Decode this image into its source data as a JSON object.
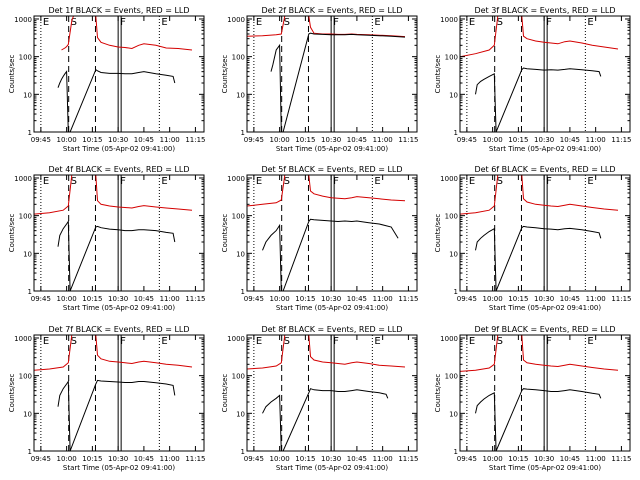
{
  "window": {
    "background": "#ffffff"
  },
  "colors": {
    "events": "#000000",
    "lld": "#d40000",
    "axis": "#000000"
  },
  "shared": {
    "ylabel": "Counts/sec",
    "xlabel": "Start Time (05-Apr-02 09:41:00)",
    "x_ticks": [
      "09:45",
      "10:00",
      "10:15",
      "10:30",
      "10:45",
      "11:00",
      "11:15"
    ],
    "y_ticks": [
      "1",
      "10",
      "100",
      "1000"
    ],
    "markers": [
      {
        "label": "E",
        "x": 9.75,
        "style": "dotted"
      },
      {
        "label": "S",
        "x": 10.02,
        "style": "dashed"
      },
      {
        "label": "",
        "x": 10.28,
        "style": "dashed"
      },
      {
        "label": "F",
        "x": 10.5,
        "style": "solid-double"
      },
      {
        "label": "E",
        "x": 10.9,
        "style": "dotted"
      }
    ]
  },
  "chart_data": [
    {
      "type": "line",
      "title": "Det 1f BLACK = Events, RED = LLD",
      "xlim": [
        "09:41",
        "11:20"
      ],
      "ylim": [
        1,
        1200
      ],
      "yscale": "log",
      "series": [
        {
          "name": "RED = LLD",
          "x": [
            "09:57",
            "09:58",
            "09:59",
            "10:00",
            "10:01",
            "10:03",
            "10:04",
            "10:05",
            "10:17",
            "10:18",
            "10:20",
            "10:25",
            "10:30",
            "10:34",
            "10:38",
            "10:42",
            "10:45",
            "10:52",
            "10:58",
            "11:05",
            "11:13"
          ],
          "values": [
            150,
            160,
            170,
            185,
            210,
            900,
            1200,
            1200,
            1200,
            320,
            240,
            200,
            180,
            175,
            165,
            200,
            220,
            200,
            170,
            165,
            150
          ]
        },
        {
          "name": "BLACK = Events",
          "x": [
            "09:55",
            "09:56",
            "09:57",
            "09:58",
            "09:59",
            "10:00",
            "10:01",
            "10:02",
            "10:17",
            "10:18",
            "10:20",
            "10:25",
            "10:30",
            "10:34",
            "10:38",
            "10:42",
            "10:45",
            "10:52",
            "10:58",
            "11:02",
            "11:03"
          ],
          "values": [
            15,
            20,
            25,
            30,
            35,
            40,
            1,
            1,
            45,
            42,
            38,
            36,
            36,
            35,
            35,
            38,
            40,
            35,
            32,
            30,
            20
          ]
        }
      ]
    },
    {
      "type": "line",
      "title": "Det 2f BLACK = Events, RED = LLD",
      "xlim": [
        "09:41",
        "11:20"
      ],
      "ylim": [
        1,
        1200
      ],
      "yscale": "log",
      "series": [
        {
          "name": "RED = LLD",
          "x": [
            "09:41",
            "09:50",
            "09:58",
            "10:01",
            "10:03",
            "10:04",
            "10:05",
            "10:17",
            "10:18",
            "10:20",
            "10:25",
            "10:30",
            "10:34",
            "10:38",
            "10:42",
            "10:45",
            "10:52",
            "10:58",
            "11:05",
            "11:13"
          ],
          "values": [
            350,
            360,
            380,
            400,
            1200,
            1200,
            1200,
            1200,
            600,
            420,
            400,
            400,
            390,
            390,
            400,
            390,
            380,
            370,
            360,
            340
          ]
        },
        {
          "name": "BLACK = Events",
          "x": [
            "09:55",
            "09:56",
            "09:58",
            "10:00",
            "10:01",
            "10:02",
            "10:17",
            "10:18",
            "10:20",
            "10:25",
            "10:30",
            "10:34",
            "10:38",
            "10:42",
            "10:45",
            "10:52",
            "10:58",
            "11:05",
            "11:13"
          ],
          "values": [
            40,
            60,
            150,
            200,
            1,
            1,
            400,
            420,
            400,
            390,
            380,
            380,
            380,
            390,
            380,
            370,
            360,
            350,
            330
          ]
        }
      ]
    },
    {
      "type": "line",
      "title": "Det 3f BLACK = Events, RED = LLD",
      "xlim": [
        "09:41",
        "11:20"
      ],
      "ylim": [
        1,
        1200
      ],
      "yscale": "log",
      "series": [
        {
          "name": "RED = LLD",
          "x": [
            "09:41",
            "09:50",
            "09:58",
            "10:01",
            "10:03",
            "10:04",
            "10:05",
            "10:17",
            "10:18",
            "10:20",
            "10:25",
            "10:30",
            "10:34",
            "10:38",
            "10:42",
            "10:45",
            "10:52",
            "10:58",
            "11:05",
            "11:13"
          ],
          "values": [
            100,
            120,
            150,
            200,
            1200,
            1200,
            1200,
            1200,
            350,
            300,
            260,
            240,
            230,
            220,
            250,
            260,
            230,
            200,
            180,
            160
          ]
        },
        {
          "name": "BLACK = Events",
          "x": [
            "09:50",
            "09:51",
            "09:53",
            "09:55",
            "09:58",
            "10:01",
            "10:02",
            "10:17",
            "10:18",
            "10:20",
            "10:25",
            "10:30",
            "10:34",
            "10:38",
            "10:42",
            "10:45",
            "10:52",
            "10:58",
            "11:02",
            "11:03"
          ],
          "values": [
            10,
            18,
            22,
            25,
            30,
            35,
            1,
            45,
            50,
            48,
            46,
            44,
            45,
            44,
            46,
            48,
            45,
            42,
            40,
            30
          ]
        }
      ]
    },
    {
      "type": "line",
      "title": "Det 4f BLACK = Events, RED = LLD",
      "xlim": [
        "09:41",
        "11:20"
      ],
      "ylim": [
        1,
        1200
      ],
      "yscale": "log",
      "series": [
        {
          "name": "RED = LLD",
          "x": [
            "09:41",
            "09:50",
            "09:58",
            "10:01",
            "10:03",
            "10:04",
            "10:05",
            "10:17",
            "10:18",
            "10:20",
            "10:25",
            "10:30",
            "10:34",
            "10:38",
            "10:42",
            "10:45",
            "10:52",
            "10:58",
            "11:05",
            "11:13"
          ],
          "values": [
            110,
            120,
            140,
            180,
            1200,
            1200,
            1200,
            1200,
            250,
            200,
            180,
            170,
            165,
            160,
            175,
            185,
            170,
            160,
            150,
            140
          ]
        },
        {
          "name": "BLACK = Events",
          "x": [
            "09:55",
            "09:56",
            "09:58",
            "10:00",
            "10:01",
            "10:02",
            "10:17",
            "10:18",
            "10:20",
            "10:25",
            "10:30",
            "10:34",
            "10:38",
            "10:42",
            "10:45",
            "10:52",
            "10:58",
            "11:02",
            "11:03"
          ],
          "values": [
            15,
            30,
            45,
            60,
            70,
            1,
            50,
            52,
            48,
            44,
            42,
            40,
            40,
            42,
            42,
            40,
            36,
            34,
            20
          ]
        }
      ]
    },
    {
      "type": "line",
      "title": "Det 5f BLACK = Events, RED = LLD",
      "xlim": [
        "09:41",
        "11:20"
      ],
      "ylim": [
        1,
        1200
      ],
      "yscale": "log",
      "series": [
        {
          "name": "RED = LLD",
          "x": [
            "09:41",
            "09:50",
            "09:58",
            "10:01",
            "10:03",
            "10:04",
            "10:05",
            "10:17",
            "10:18",
            "10:20",
            "10:25",
            "10:30",
            "10:34",
            "10:38",
            "10:42",
            "10:45",
            "10:52",
            "10:58",
            "11:05",
            "11:13"
          ],
          "values": [
            180,
            200,
            220,
            260,
            1200,
            1200,
            1200,
            1200,
            450,
            380,
            330,
            300,
            290,
            280,
            300,
            320,
            300,
            280,
            260,
            250
          ]
        },
        {
          "name": "BLACK = Events",
          "x": [
            "09:50",
            "09:52",
            "09:55",
            "09:58",
            "10:00",
            "10:01",
            "10:02",
            "10:17",
            "10:18",
            "10:20",
            "10:25",
            "10:30",
            "10:34",
            "10:38",
            "10:42",
            "10:45",
            "10:52",
            "10:58",
            "11:05",
            "11:09"
          ],
          "values": [
            12,
            20,
            30,
            40,
            55,
            1,
            1,
            70,
            80,
            78,
            75,
            72,
            70,
            72,
            70,
            72,
            65,
            60,
            50,
            25
          ]
        }
      ]
    },
    {
      "type": "line",
      "title": "Det 6f BLACK = Events, RED = LLD",
      "xlim": [
        "09:41",
        "11:20"
      ],
      "ylim": [
        1,
        1200
      ],
      "yscale": "log",
      "series": [
        {
          "name": "RED = LLD",
          "x": [
            "09:41",
            "09:50",
            "09:58",
            "10:01",
            "10:03",
            "10:04",
            "10:05",
            "10:17",
            "10:18",
            "10:20",
            "10:25",
            "10:30",
            "10:34",
            "10:38",
            "10:42",
            "10:45",
            "10:52",
            "10:58",
            "11:05",
            "11:13"
          ],
          "values": [
            110,
            120,
            140,
            180,
            1200,
            1200,
            1200,
            1200,
            280,
            230,
            200,
            190,
            180,
            175,
            190,
            200,
            180,
            165,
            150,
            140
          ]
        },
        {
          "name": "BLACK = Events",
          "x": [
            "09:50",
            "09:51",
            "09:53",
            "09:55",
            "09:58",
            "10:01",
            "10:02",
            "10:17",
            "10:18",
            "10:20",
            "10:25",
            "10:30",
            "10:34",
            "10:38",
            "10:42",
            "10:45",
            "10:52",
            "10:58",
            "11:02",
            "11:03"
          ],
          "values": [
            12,
            20,
            25,
            30,
            38,
            45,
            1,
            48,
            52,
            50,
            48,
            45,
            44,
            42,
            45,
            46,
            42,
            38,
            35,
            25
          ]
        }
      ]
    },
    {
      "type": "line",
      "title": "Det 7f BLACK = Events, RED = LLD",
      "xlim": [
        "09:41",
        "11:20"
      ],
      "ylim": [
        1,
        1200
      ],
      "yscale": "log",
      "series": [
        {
          "name": "RED = LLD",
          "x": [
            "09:41",
            "09:50",
            "09:58",
            "10:01",
            "10:03",
            "10:04",
            "10:05",
            "10:17",
            "10:18",
            "10:20",
            "10:25",
            "10:30",
            "10:34",
            "10:38",
            "10:42",
            "10:45",
            "10:52",
            "10:58",
            "11:05",
            "11:13"
          ],
          "values": [
            140,
            150,
            170,
            220,
            1200,
            1200,
            1200,
            1200,
            350,
            280,
            240,
            230,
            220,
            210,
            230,
            240,
            220,
            200,
            190,
            170
          ]
        },
        {
          "name": "BLACK = Events",
          "x": [
            "09:55",
            "09:56",
            "09:58",
            "10:00",
            "10:01",
            "10:02",
            "10:17",
            "10:18",
            "10:20",
            "10:25",
            "10:30",
            "10:34",
            "10:38",
            "10:42",
            "10:45",
            "10:52",
            "10:58",
            "11:02",
            "11:03"
          ],
          "values": [
            15,
            30,
            45,
            60,
            70,
            1,
            60,
            75,
            72,
            70,
            68,
            66,
            66,
            70,
            70,
            65,
            60,
            55,
            30
          ]
        }
      ]
    },
    {
      "type": "line",
      "title": "Det 8f BLACK = Events, RED = LLD",
      "xlim": [
        "09:41",
        "11:20"
      ],
      "ylim": [
        1,
        1200
      ],
      "yscale": "log",
      "series": [
        {
          "name": "RED = LLD",
          "x": [
            "09:41",
            "09:50",
            "09:58",
            "10:01",
            "10:03",
            "10:04",
            "10:05",
            "10:17",
            "10:18",
            "10:20",
            "10:25",
            "10:30",
            "10:34",
            "10:38",
            "10:42",
            "10:45",
            "10:52",
            "10:58",
            "11:05",
            "11:13"
          ],
          "values": [
            150,
            160,
            180,
            220,
            1200,
            1200,
            1200,
            1200,
            320,
            260,
            230,
            220,
            210,
            200,
            220,
            230,
            210,
            190,
            180,
            170
          ]
        },
        {
          "name": "BLACK = Events",
          "x": [
            "09:50",
            "09:52",
            "09:55",
            "09:58",
            "10:00",
            "10:01",
            "10:02",
            "10:17",
            "10:18",
            "10:20",
            "10:25",
            "10:30",
            "10:34",
            "10:38",
            "10:42",
            "10:45",
            "10:52",
            "10:58",
            "11:02",
            "11:03"
          ],
          "values": [
            10,
            15,
            20,
            25,
            30,
            1,
            1,
            35,
            45,
            42,
            40,
            40,
            38,
            38,
            40,
            42,
            38,
            35,
            32,
            25
          ]
        }
      ]
    },
    {
      "type": "line",
      "title": "Det 9f BLACK = Events, RED = LLD",
      "xlim": [
        "09:41",
        "11:20"
      ],
      "ylim": [
        1,
        1200
      ],
      "yscale": "log",
      "series": [
        {
          "name": "RED = LLD",
          "x": [
            "09:41",
            "09:50",
            "09:58",
            "10:01",
            "10:03",
            "10:04",
            "10:05",
            "10:17",
            "10:18",
            "10:20",
            "10:25",
            "10:30",
            "10:34",
            "10:38",
            "10:42",
            "10:45",
            "10:52",
            "10:58",
            "11:05",
            "11:13"
          ],
          "values": [
            130,
            140,
            160,
            200,
            1200,
            1200,
            1200,
            1200,
            260,
            220,
            200,
            190,
            180,
            175,
            190,
            200,
            180,
            165,
            150,
            140
          ]
        },
        {
          "name": "BLACK = Events",
          "x": [
            "09:50",
            "09:51",
            "09:53",
            "09:55",
            "09:58",
            "10:01",
            "10:02",
            "10:17",
            "10:18",
            "10:20",
            "10:25",
            "10:30",
            "10:34",
            "10:38",
            "10:42",
            "10:45",
            "10:52",
            "10:58",
            "11:02",
            "11:03"
          ],
          "values": [
            10,
            16,
            20,
            24,
            30,
            35,
            1,
            40,
            45,
            44,
            42,
            40,
            38,
            38,
            40,
            42,
            38,
            34,
            32,
            25
          ]
        }
      ]
    }
  ]
}
